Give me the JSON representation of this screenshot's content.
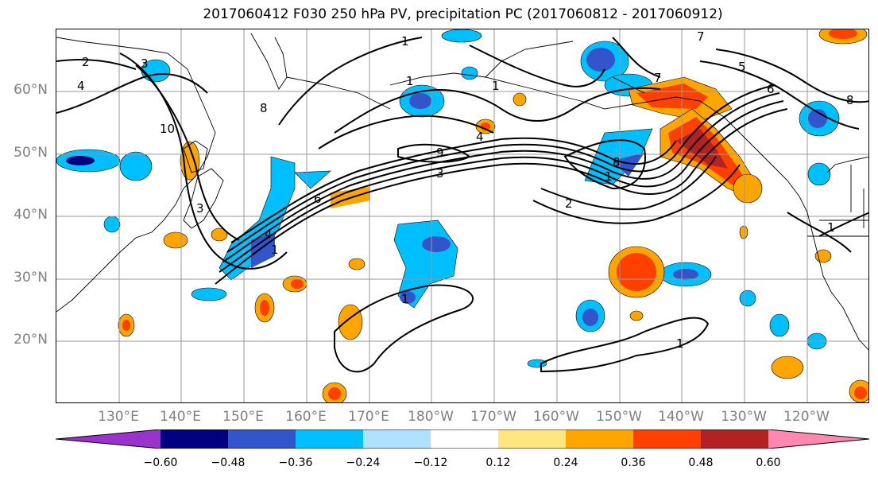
{
  "title": "2017060412 F030 250 hPa PV, precipitation PC (2017060812 - 2017060912)",
  "latitude_labels": [
    "60°N",
    "50°N",
    "40°N",
    "30°N",
    "20°N"
  ],
  "longitude_labels": [
    "130°E",
    "140°E",
    "150°E",
    "160°E",
    "170°E",
    "180°W",
    "170°W",
    "160°W",
    "150°W",
    "140°W",
    "130°W",
    "120°W"
  ],
  "colorbar": {
    "ticks": [
      "−0.60",
      "−0.48",
      "−0.36",
      "−0.24",
      "−0.12",
      "0.12",
      "0.24",
      "0.36",
      "0.48",
      "0.60"
    ],
    "colors": [
      "#9933cc",
      "#000080",
      "#3355cc",
      "#00bfff",
      "#b0e0ff",
      "#ffffff",
      "#ffe680",
      "#ffa500",
      "#ff4000",
      "#b22222",
      "#ff88b0"
    ]
  },
  "contour_labels": [
    "1",
    "2",
    "3",
    "4",
    "5",
    "6",
    "7",
    "8",
    "9",
    "10"
  ],
  "map_extent": {
    "lon_min": 120,
    "lon_max": 250,
    "lat_min": 10,
    "lat_max": 70
  }
}
